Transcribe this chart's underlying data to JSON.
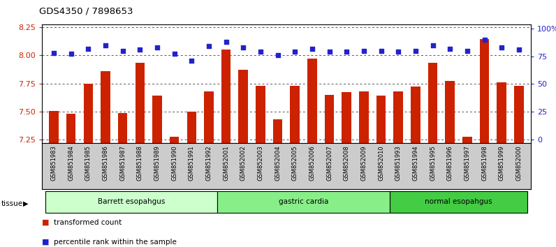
{
  "title": "GDS4350 / 7898653",
  "samples": [
    "GSM851983",
    "GSM851984",
    "GSM851985",
    "GSM851986",
    "GSM851987",
    "GSM851988",
    "GSM851989",
    "GSM851990",
    "GSM851991",
    "GSM851992",
    "GSM852001",
    "GSM852002",
    "GSM852003",
    "GSM852004",
    "GSM852005",
    "GSM852006",
    "GSM852007",
    "GSM852008",
    "GSM852009",
    "GSM852010",
    "GSM851993",
    "GSM851994",
    "GSM851995",
    "GSM851996",
    "GSM851997",
    "GSM851998",
    "GSM851999",
    "GSM852000"
  ],
  "transformed_count": [
    7.505,
    7.48,
    7.75,
    7.86,
    7.49,
    7.93,
    7.64,
    7.28,
    7.5,
    7.68,
    8.05,
    7.87,
    7.73,
    7.43,
    7.73,
    7.97,
    7.65,
    7.67,
    7.68,
    7.64,
    7.68,
    7.72,
    7.93,
    7.77,
    7.28,
    8.14,
    7.76,
    7.73
  ],
  "percentile_rank": [
    78,
    77,
    82,
    85,
    80,
    81,
    83,
    77,
    71,
    84,
    88,
    83,
    79,
    76,
    79,
    82,
    79,
    79,
    80,
    80,
    79,
    80,
    85,
    82,
    80,
    90,
    83,
    81
  ],
  "groups": [
    {
      "label": "Barrett esopahgus",
      "start": 0,
      "end": 9,
      "color": "#ccffcc"
    },
    {
      "label": "gastric cardia",
      "start": 10,
      "end": 19,
      "color": "#88ee88"
    },
    {
      "label": "normal esopahgus",
      "start": 20,
      "end": 27,
      "color": "#44cc44"
    }
  ],
  "ylim_left": [
    7.22,
    8.27
  ],
  "yticks_left": [
    7.25,
    7.5,
    7.75,
    8.0,
    8.25
  ],
  "ylim_right": [
    -3.5,
    103.5
  ],
  "yticks_right": [
    0,
    25,
    50,
    75,
    100
  ],
  "ytick_labels_right": [
    "0",
    "25",
    "50",
    "75",
    "100%"
  ],
  "bar_color": "#cc2200",
  "dot_color": "#2222cc",
  "grid_color": "#555555",
  "bg_color": "#ffffff",
  "bar_bottom": 7.22,
  "xtick_bg": "#cccccc",
  "legend_items": [
    {
      "color": "#cc2200",
      "label": "transformed count"
    },
    {
      "color": "#2222cc",
      "label": "percentile rank within the sample"
    }
  ]
}
